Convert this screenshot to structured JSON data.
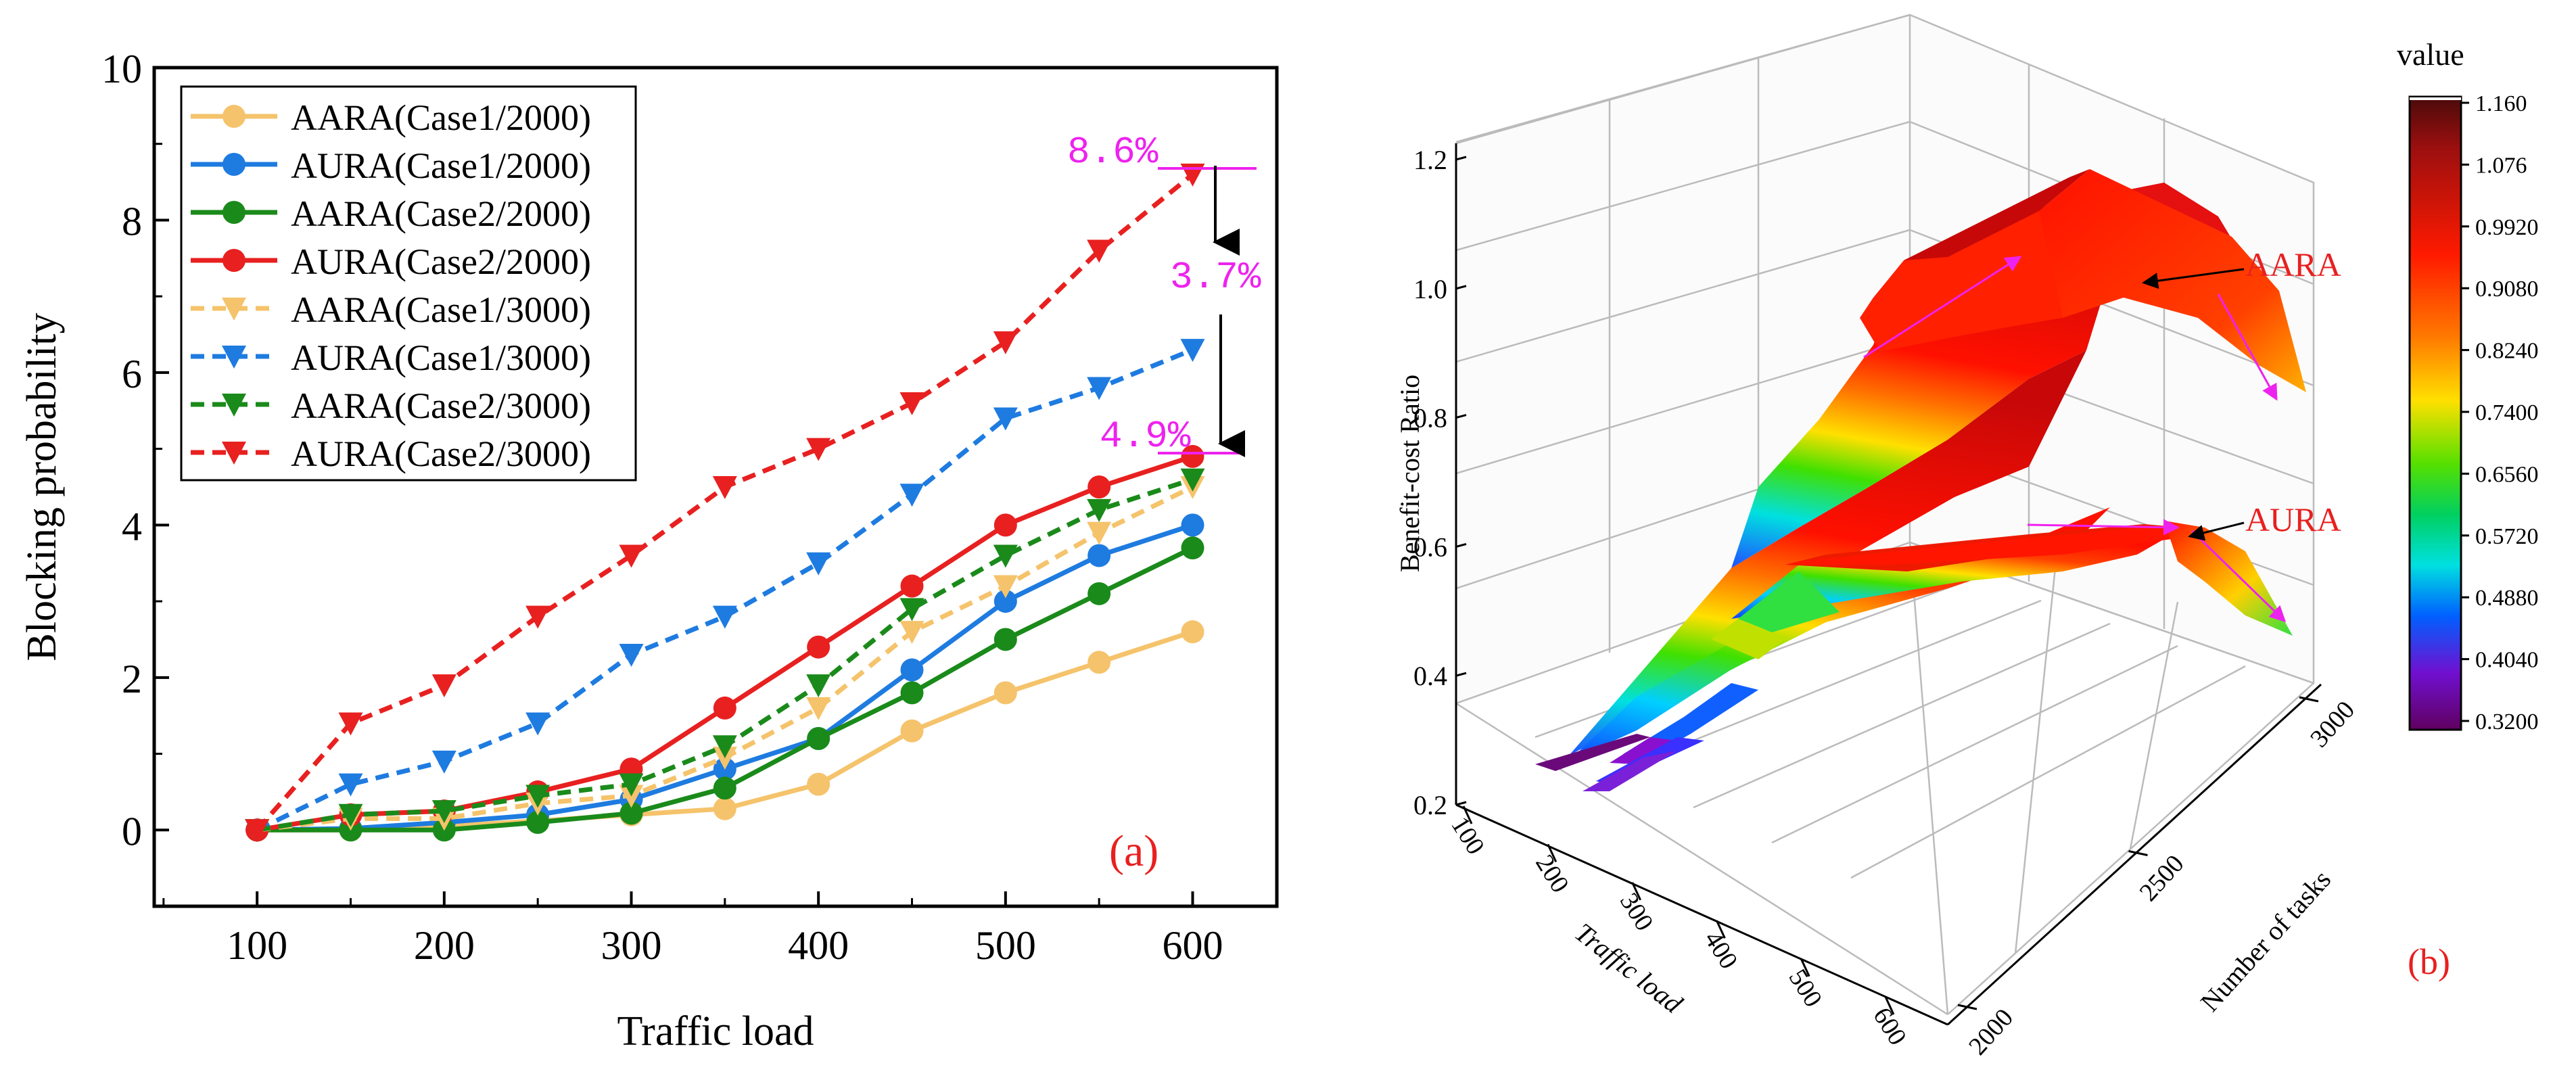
{
  "chart_data": [
    {
      "type": "line",
      "panel_label": "(a)",
      "xlabel": "Traffic load",
      "ylabel": "Blocking probability",
      "xlim": [
        45,
        645
      ],
      "ylim": [
        -1,
        10
      ],
      "x_ticks": [
        100,
        200,
        300,
        400,
        500,
        600
      ],
      "y_ticks": [
        0,
        2,
        4,
        6,
        8,
        10
      ],
      "x": [
        100,
        150,
        200,
        250,
        300,
        350,
        400,
        450,
        500,
        550,
        600
      ],
      "legend_position": "top-left",
      "series": [
        {
          "name": "AARA(Case1/2000)",
          "color": "#f5c36b",
          "dash": "solid",
          "marker": "circle",
          "values": [
            0,
            0,
            0.05,
            0.12,
            0.2,
            0.28,
            0.6,
            1.3,
            1.8,
            2.2,
            2.6
          ]
        },
        {
          "name": "AURA(Case1/2000)",
          "color": "#1e7be0",
          "dash": "solid",
          "marker": "circle",
          "values": [
            0,
            0.02,
            0.1,
            0.2,
            0.4,
            0.8,
            1.2,
            2.1,
            3.0,
            3.6,
            4.0
          ]
        },
        {
          "name": "AARA(Case2/2000)",
          "color": "#1a8a1a",
          "dash": "solid",
          "marker": "circle",
          "values": [
            0,
            0,
            0,
            0.1,
            0.22,
            0.55,
            1.2,
            1.8,
            2.5,
            3.1,
            3.7
          ]
        },
        {
          "name": "AURA(Case2/2000)",
          "color": "#e82020",
          "dash": "solid",
          "marker": "circle",
          "values": [
            0,
            0.2,
            0.25,
            0.5,
            0.8,
            1.6,
            2.4,
            3.2,
            4.0,
            4.5,
            4.9
          ]
        },
        {
          "name": "AARA(Case1/3000)",
          "color": "#f5c36b",
          "dash": "dashed",
          "marker": "triangle-down",
          "values": [
            0,
            0.15,
            0.15,
            0.35,
            0.45,
            0.95,
            1.6,
            2.6,
            3.2,
            3.9,
            4.5
          ]
        },
        {
          "name": "AURA(Case1/3000)",
          "color": "#1e7be0",
          "dash": "dashed",
          "marker": "triangle-down",
          "values": [
            0,
            0.6,
            0.9,
            1.4,
            2.3,
            2.8,
            3.5,
            4.4,
            5.4,
            5.8,
            6.3
          ]
        },
        {
          "name": "AARA(Case2/3000)",
          "color": "#1a8a1a",
          "dash": "dashed",
          "marker": "triangle-down",
          "values": [
            0,
            0.2,
            0.25,
            0.45,
            0.6,
            1.1,
            1.9,
            2.9,
            3.6,
            4.2,
            4.6
          ]
        },
        {
          "name": "AURA(Case2/3000)",
          "color": "#e82020",
          "dash": "dashed",
          "marker": "triangle-down",
          "values": [
            0,
            1.4,
            1.9,
            2.8,
            3.6,
            4.5,
            5.0,
            5.6,
            6.4,
            7.6,
            8.6
          ]
        }
      ],
      "annotations": [
        {
          "text": "8.6%",
          "color": "#ee22ee",
          "value": 8.6
        },
        {
          "text": "3.7%",
          "color": "#ee22ee",
          "value": 3.7
        },
        {
          "text": "4.9%",
          "color": "#ee22ee",
          "value": 4.9
        }
      ]
    },
    {
      "type": "surface3d",
      "panel_label": "(b)",
      "xlabel": "Traffic load",
      "ylabel": "Number of tasks",
      "zlabel": "Benefit-cost Ratio",
      "x_ticks": [
        100,
        200,
        300,
        400,
        500,
        600
      ],
      "y_ticks": [
        2000,
        2500,
        3000
      ],
      "z_ticks": [
        0.2,
        0.4,
        0.6,
        0.8,
        1.0,
        1.2
      ],
      "zlim": [
        0.2,
        1.2
      ],
      "surface_labels": [
        "AARA",
        "AURA"
      ],
      "colorbar": {
        "title": "value",
        "ticks": [
          "1.160",
          "1.076",
          "0.9920",
          "0.9080",
          "0.8240",
          "0.7400",
          "0.6560",
          "0.5720",
          "0.4880",
          "0.4040",
          "0.3200"
        ],
        "min": 0.32,
        "max": 1.16
      }
    }
  ]
}
